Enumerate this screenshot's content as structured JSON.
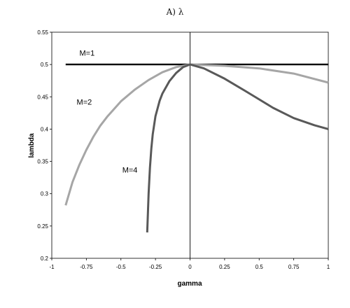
{
  "chart_data": {
    "type": "line",
    "title": "A) λ",
    "xlabel": "gamma",
    "ylabel": "lambda",
    "xlim": [
      -1,
      1
    ],
    "ylim": [
      0.2,
      0.55
    ],
    "x_ticks": [
      "-1",
      "-0.75",
      "-0.5",
      "-0.25",
      "0",
      "0.25",
      "0.5",
      "0.75",
      "1"
    ],
    "y_ticks": [
      "0.2",
      "0.25",
      "0.3",
      "0.35",
      "0.4",
      "0.45",
      "0.5",
      "0.55"
    ],
    "grid": false,
    "series": [
      {
        "name": "M=1",
        "color": "#000000",
        "x": [
          -0.9,
          1.0
        ],
        "y": [
          0.5,
          0.5
        ]
      },
      {
        "name": "M=2",
        "color": "#a6a6a6",
        "x": [
          -0.9,
          -0.85,
          -0.8,
          -0.75,
          -0.7,
          -0.65,
          -0.6,
          -0.5,
          -0.4,
          -0.3,
          -0.2,
          -0.1,
          0.0,
          0.25,
          0.5,
          0.75,
          1.0
        ],
        "y": [
          0.282,
          0.318,
          0.345,
          0.368,
          0.388,
          0.405,
          0.419,
          0.443,
          0.461,
          0.476,
          0.488,
          0.496,
          0.5,
          0.498,
          0.494,
          0.486,
          0.472
        ]
      },
      {
        "name": "M=4",
        "color": "#595959",
        "x": [
          -0.31,
          -0.3,
          -0.29,
          -0.28,
          -0.27,
          -0.25,
          -0.22,
          -0.2,
          -0.15,
          -0.1,
          -0.05,
          0.0,
          0.1,
          0.25,
          0.4,
          0.5,
          0.6,
          0.75,
          0.9,
          1.0
        ],
        "y": [
          0.24,
          0.3,
          0.34,
          0.37,
          0.392,
          0.42,
          0.444,
          0.455,
          0.474,
          0.487,
          0.496,
          0.5,
          0.494,
          0.478,
          0.459,
          0.446,
          0.433,
          0.417,
          0.406,
          0.4
        ]
      }
    ]
  }
}
